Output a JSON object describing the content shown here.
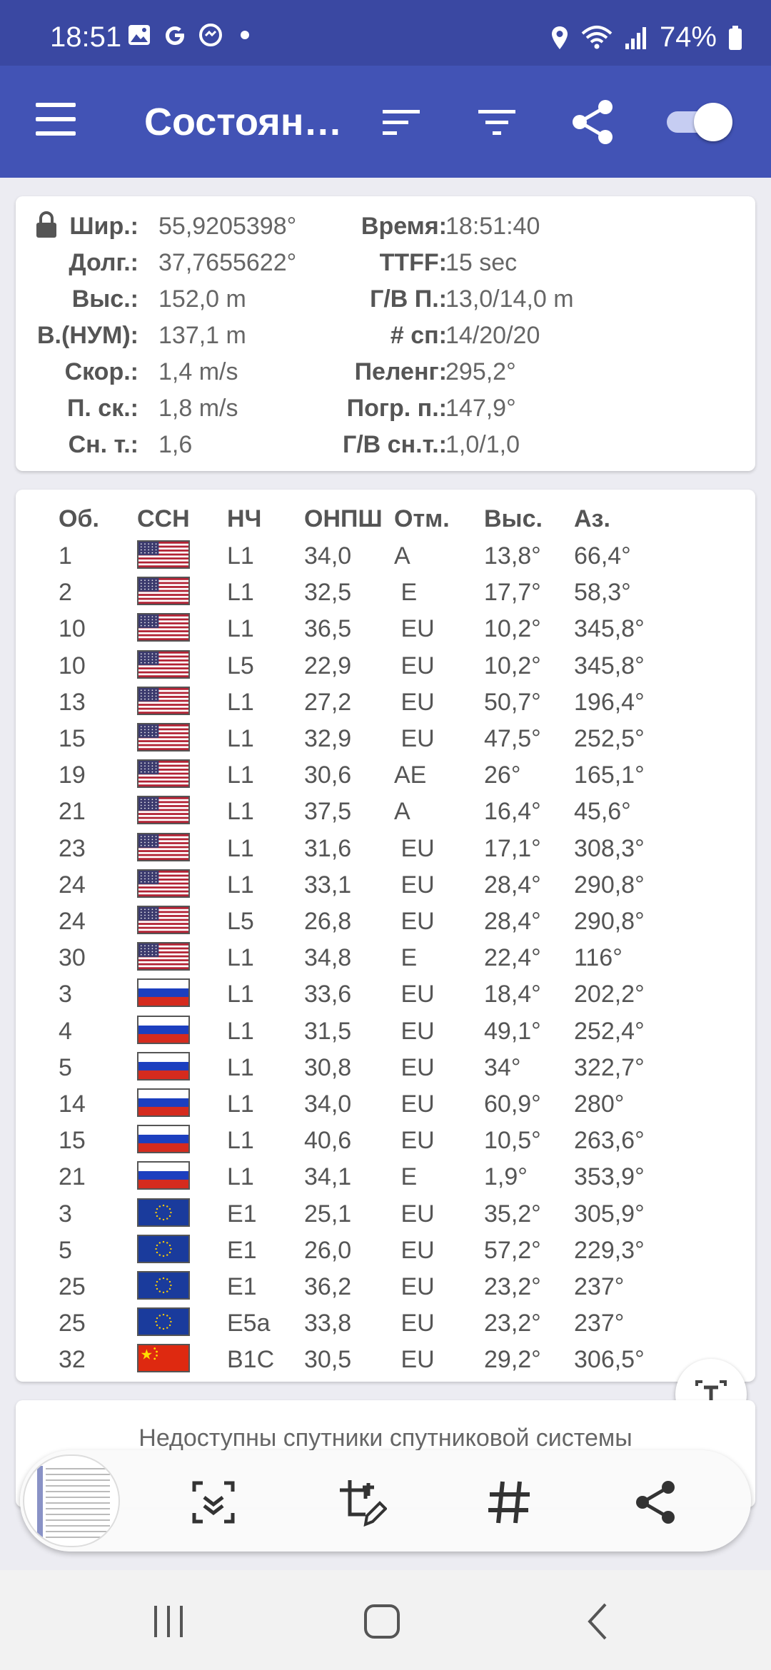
{
  "status_bar": {
    "time": "18:51",
    "battery": "74%",
    "left_icons": [
      "gallery-icon",
      "google-icon",
      "messenger-icon",
      "dot-icon"
    ],
    "right_icons": [
      "location-icon",
      "wifi-icon",
      "signal-icon",
      "battery-icon"
    ]
  },
  "app_bar": {
    "title": "Состоян…",
    "toggle_on": true
  },
  "info": {
    "left": [
      {
        "label": "Шир.:",
        "value": "55,9205398°"
      },
      {
        "label": "Долг.:",
        "value": "37,7655622°"
      },
      {
        "label": "Выс.:",
        "value": "152,0 m"
      },
      {
        "label": "В.(НУМ):",
        "value": "137,1 m"
      },
      {
        "label": "Скор.:",
        "value": "1,4 m/s"
      },
      {
        "label": "П. ск.:",
        "value": "1,8 m/s"
      },
      {
        "label": "Сн. т.:",
        "value": "1,6"
      }
    ],
    "right": [
      {
        "label": "Время:",
        "value": "18:51:40"
      },
      {
        "label": "TTFF:",
        "value": "15 sec"
      },
      {
        "label": "Г/В П.:",
        "value": "13,0/14,0 m"
      },
      {
        "label": "# сп:",
        "value": "14/20/20"
      },
      {
        "label": "Пеленг:",
        "value": "295,2°"
      },
      {
        "label": "Погр. п.:",
        "value": "147,9°"
      },
      {
        "label": "Г/В сн.т.:",
        "value": "1,0/1,0"
      }
    ]
  },
  "table": {
    "headers": [
      "Об.",
      "ССН",
      "НЧ",
      "ОНПШ",
      "Отм.",
      "Выс.",
      "Аз."
    ],
    "rows": [
      {
        "id": "1",
        "flag": "us",
        "freq": "L1",
        "cn0": "34,0",
        "flags": "A",
        "elev": "13,8°",
        "az": "66,4°"
      },
      {
        "id": "2",
        "flag": "us",
        "freq": "L1",
        "cn0": "32,5",
        "flags": " E",
        "elev": "17,7°",
        "az": "58,3°"
      },
      {
        "id": "10",
        "flag": "us",
        "freq": "L1",
        "cn0": "36,5",
        "flags": " EU",
        "elev": "10,2°",
        "az": "345,8°"
      },
      {
        "id": "10",
        "flag": "us",
        "freq": "L5",
        "cn0": "22,9",
        "flags": " EU",
        "elev": "10,2°",
        "az": "345,8°"
      },
      {
        "id": "13",
        "flag": "us",
        "freq": "L1",
        "cn0": "27,2",
        "flags": " EU",
        "elev": "50,7°",
        "az": "196,4°"
      },
      {
        "id": "15",
        "flag": "us",
        "freq": "L1",
        "cn0": "32,9",
        "flags": " EU",
        "elev": "47,5°",
        "az": "252,5°"
      },
      {
        "id": "19",
        "flag": "us",
        "freq": "L1",
        "cn0": "30,6",
        "flags": "AE",
        "elev": "26°",
        "az": "165,1°"
      },
      {
        "id": "21",
        "flag": "us",
        "freq": "L1",
        "cn0": "37,5",
        "flags": "A",
        "elev": "16,4°",
        "az": "45,6°"
      },
      {
        "id": "23",
        "flag": "us",
        "freq": "L1",
        "cn0": "31,6",
        "flags": " EU",
        "elev": "17,1°",
        "az": "308,3°"
      },
      {
        "id": "24",
        "flag": "us",
        "freq": "L1",
        "cn0": "33,1",
        "flags": " EU",
        "elev": "28,4°",
        "az": "290,8°"
      },
      {
        "id": "24",
        "flag": "us",
        "freq": "L5",
        "cn0": "26,8",
        "flags": " EU",
        "elev": "28,4°",
        "az": "290,8°"
      },
      {
        "id": "30",
        "flag": "us",
        "freq": "L1",
        "cn0": "34,8",
        "flags": " E",
        "elev": "22,4°",
        "az": "116°"
      },
      {
        "id": "3",
        "flag": "ru",
        "freq": "L1",
        "cn0": "33,6",
        "flags": " EU",
        "elev": "18,4°",
        "az": "202,2°"
      },
      {
        "id": "4",
        "flag": "ru",
        "freq": "L1",
        "cn0": "31,5",
        "flags": " EU",
        "elev": "49,1°",
        "az": "252,4°"
      },
      {
        "id": "5",
        "flag": "ru",
        "freq": "L1",
        "cn0": "30,8",
        "flags": " EU",
        "elev": "34°",
        "az": "322,7°"
      },
      {
        "id": "14",
        "flag": "ru",
        "freq": "L1",
        "cn0": "34,0",
        "flags": " EU",
        "elev": "60,9°",
        "az": "280°"
      },
      {
        "id": "15",
        "flag": "ru",
        "freq": "L1",
        "cn0": "40,6",
        "flags": " EU",
        "elev": "10,5°",
        "az": "263,6°"
      },
      {
        "id": "21",
        "flag": "ru",
        "freq": "L1",
        "cn0": "34,1",
        "flags": " E",
        "elev": "1,9°",
        "az": "353,9°"
      },
      {
        "id": "3",
        "flag": "eu",
        "freq": "E1",
        "cn0": "25,1",
        "flags": " EU",
        "elev": "35,2°",
        "az": "305,9°"
      },
      {
        "id": "5",
        "flag": "eu",
        "freq": "E1",
        "cn0": "26,0",
        "flags": " EU",
        "elev": "57,2°",
        "az": "229,3°"
      },
      {
        "id": "25",
        "flag": "eu",
        "freq": "E1",
        "cn0": "36,2",
        "flags": " EU",
        "elev": "23,2°",
        "az": "237°"
      },
      {
        "id": "25",
        "flag": "eu",
        "freq": "E5a",
        "cn0": "33,8",
        "flags": " EU",
        "elev": "23,2°",
        "az": "237°"
      },
      {
        "id": "32",
        "flag": "cn",
        "freq": "B1C",
        "cn0": "30,5",
        "flags": " EU",
        "elev": "29,2°",
        "az": "306,5°"
      }
    ]
  },
  "bottom_card": {
    "text": "Недоступны спутники спутниковой системы"
  },
  "toolbar": {
    "buttons": [
      "scroll-capture-icon",
      "crop-edit-icon",
      "hashtag-icon",
      "share-icon"
    ]
  },
  "nav_bar": {
    "buttons": [
      "recents-icon",
      "home-icon",
      "back-icon"
    ]
  },
  "colors": {
    "status_bar": "#3a48a2",
    "app_bar": "#4253b5"
  }
}
